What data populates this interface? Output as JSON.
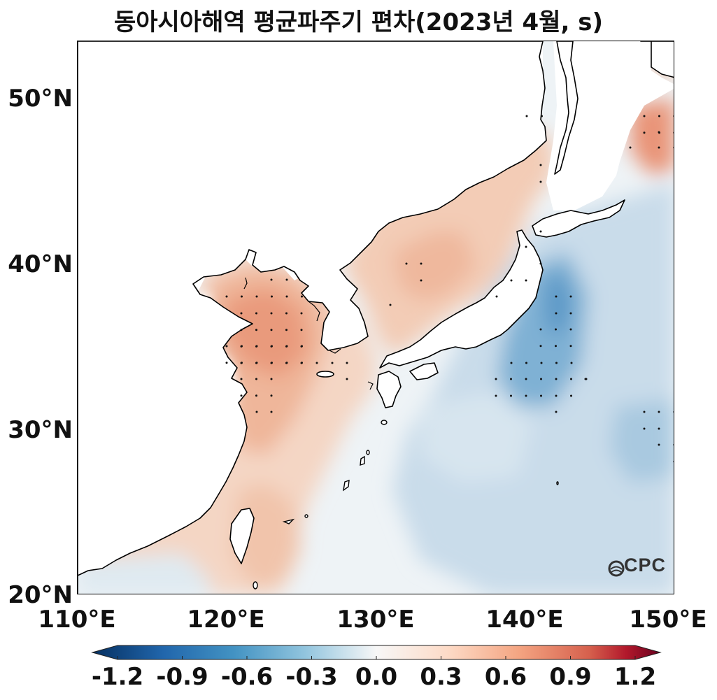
{
  "title": "동아시아해역 평균파주기 편차(2023년 4월, s)",
  "map": {
    "lon_range": [
      110,
      150
    ],
    "lat_range": [
      20,
      53.5
    ],
    "lat_labels": [
      "50°N",
      "40°N",
      "30°N",
      "20°N"
    ],
    "lat_values": [
      50,
      40,
      30,
      20
    ],
    "lon_labels": [
      "110°E",
      "120°E",
      "130°E",
      "140°E",
      "150°E"
    ],
    "lon_values": [
      110,
      120,
      130,
      140,
      150
    ]
  },
  "colorbar": {
    "ticks": [
      "-1.2",
      "-0.9",
      "-0.6",
      "-0.3",
      "0.0",
      "0.3",
      "0.6",
      "0.9",
      "1.2"
    ],
    "colors": [
      "#053061",
      "#2166ac",
      "#4393c3",
      "#92c5de",
      "#f7f7f7",
      "#fddbc7",
      "#f4a582",
      "#d6604d",
      "#b2182b",
      "#67001f"
    ],
    "extend": "both"
  },
  "logo": {
    "text": "OCPC",
    "icon": "ocpc-logo-icon"
  }
}
